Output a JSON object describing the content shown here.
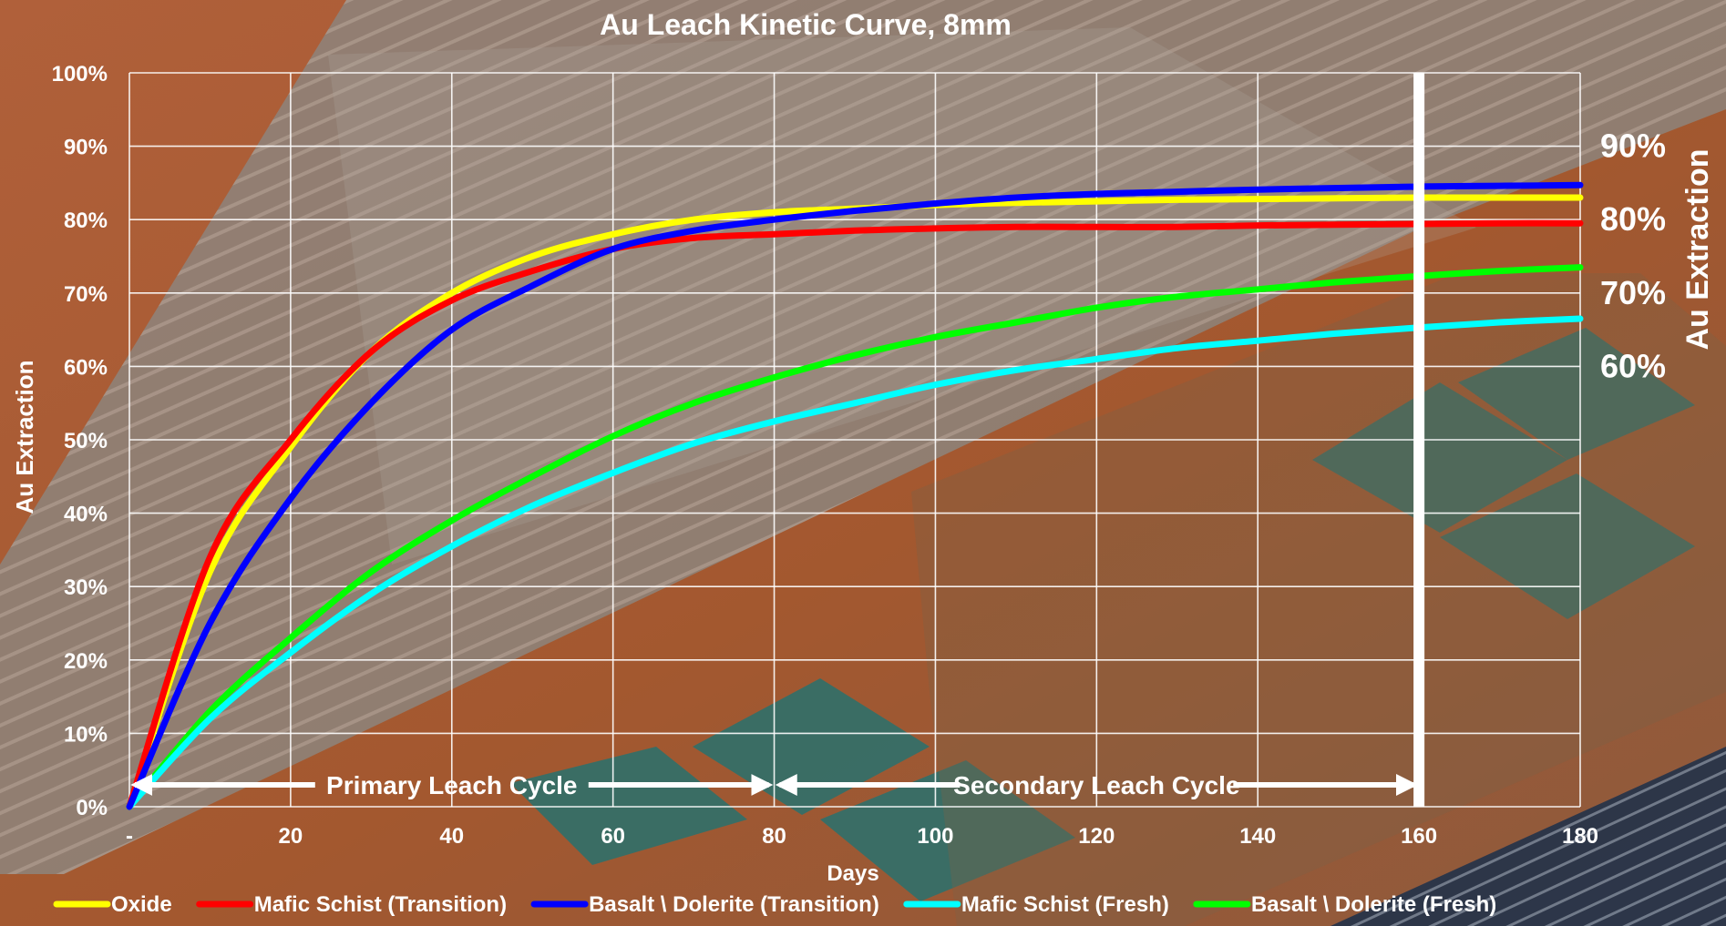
{
  "chart_data": {
    "type": "line",
    "title": "Au Leach Kinetic Curve, 8mm",
    "xlabel": "Days",
    "ylabel": "Au Extraction",
    "xlim": [
      0,
      180
    ],
    "ylim": [
      0,
      1
    ],
    "x_ticks": [
      0,
      20,
      40,
      60,
      80,
      100,
      120,
      140,
      160,
      180
    ],
    "x_tick_labels": [
      "-",
      "20",
      "40",
      "60",
      "80",
      "100",
      "120",
      "140",
      "160",
      "180"
    ],
    "y_ticks": [
      0,
      0.1,
      0.2,
      0.3,
      0.4,
      0.5,
      0.6,
      0.7,
      0.8,
      0.9,
      1.0
    ],
    "y_tick_labels": [
      "0%",
      "10%",
      "20%",
      "30%",
      "40%",
      "50%",
      "60%",
      "70%",
      "80%",
      "90%",
      "100%"
    ],
    "secondary_axis": {
      "label": "Au Extraction",
      "ticks": [
        0.6,
        0.7,
        0.8,
        0.9
      ],
      "tick_labels": [
        "60%",
        "70%",
        "80%",
        "90%"
      ]
    },
    "grid": true,
    "legend_position": "bottom",
    "x": [
      0,
      10,
      20,
      30,
      40,
      50,
      60,
      70,
      80,
      90,
      100,
      110,
      120,
      130,
      140,
      150,
      160,
      170,
      180
    ],
    "series": [
      {
        "name": "Oxide",
        "color": "#ffff00",
        "values": [
          0.0,
          0.32,
          0.49,
          0.62,
          0.7,
          0.75,
          0.78,
          0.8,
          0.81,
          0.815,
          0.82,
          0.823,
          0.825,
          0.827,
          0.828,
          0.829,
          0.83,
          0.83,
          0.83
        ]
      },
      {
        "name": "Mafic Schist (Transition)",
        "color": "#ff0000",
        "values": [
          0.0,
          0.34,
          0.5,
          0.62,
          0.69,
          0.73,
          0.76,
          0.775,
          0.78,
          0.785,
          0.788,
          0.79,
          0.79,
          0.79,
          0.792,
          0.793,
          0.794,
          0.795,
          0.795
        ]
      },
      {
        "name": "Basalt \\ Dolerite (Transition)",
        "color": "#0000ff",
        "values": [
          0.0,
          0.25,
          0.42,
          0.55,
          0.65,
          0.71,
          0.76,
          0.785,
          0.8,
          0.812,
          0.822,
          0.83,
          0.835,
          0.838,
          0.841,
          0.843,
          0.845,
          0.846,
          0.847
        ]
      },
      {
        "name": "Mafic Schist (Fresh)",
        "color": "#00ffff",
        "values": [
          0.0,
          0.12,
          0.21,
          0.29,
          0.355,
          0.41,
          0.455,
          0.495,
          0.525,
          0.55,
          0.575,
          0.595,
          0.61,
          0.625,
          0.635,
          0.645,
          0.653,
          0.66,
          0.665
        ]
      },
      {
        "name": "Basalt \\ Dolerite (Fresh)",
        "color": "#00ff00",
        "values": [
          0.0,
          0.13,
          0.23,
          0.32,
          0.39,
          0.45,
          0.505,
          0.55,
          0.585,
          0.615,
          0.64,
          0.66,
          0.68,
          0.695,
          0.705,
          0.715,
          0.723,
          0.73,
          0.735
        ]
      }
    ],
    "annotations": {
      "primary": {
        "label": "Primary Leach Cycle",
        "x_start": 0,
        "x_end": 80
      },
      "secondary": {
        "label": "Secondary Leach Cycle",
        "x_start": 80,
        "x_end": 160
      },
      "marker_line_x": 160
    }
  }
}
